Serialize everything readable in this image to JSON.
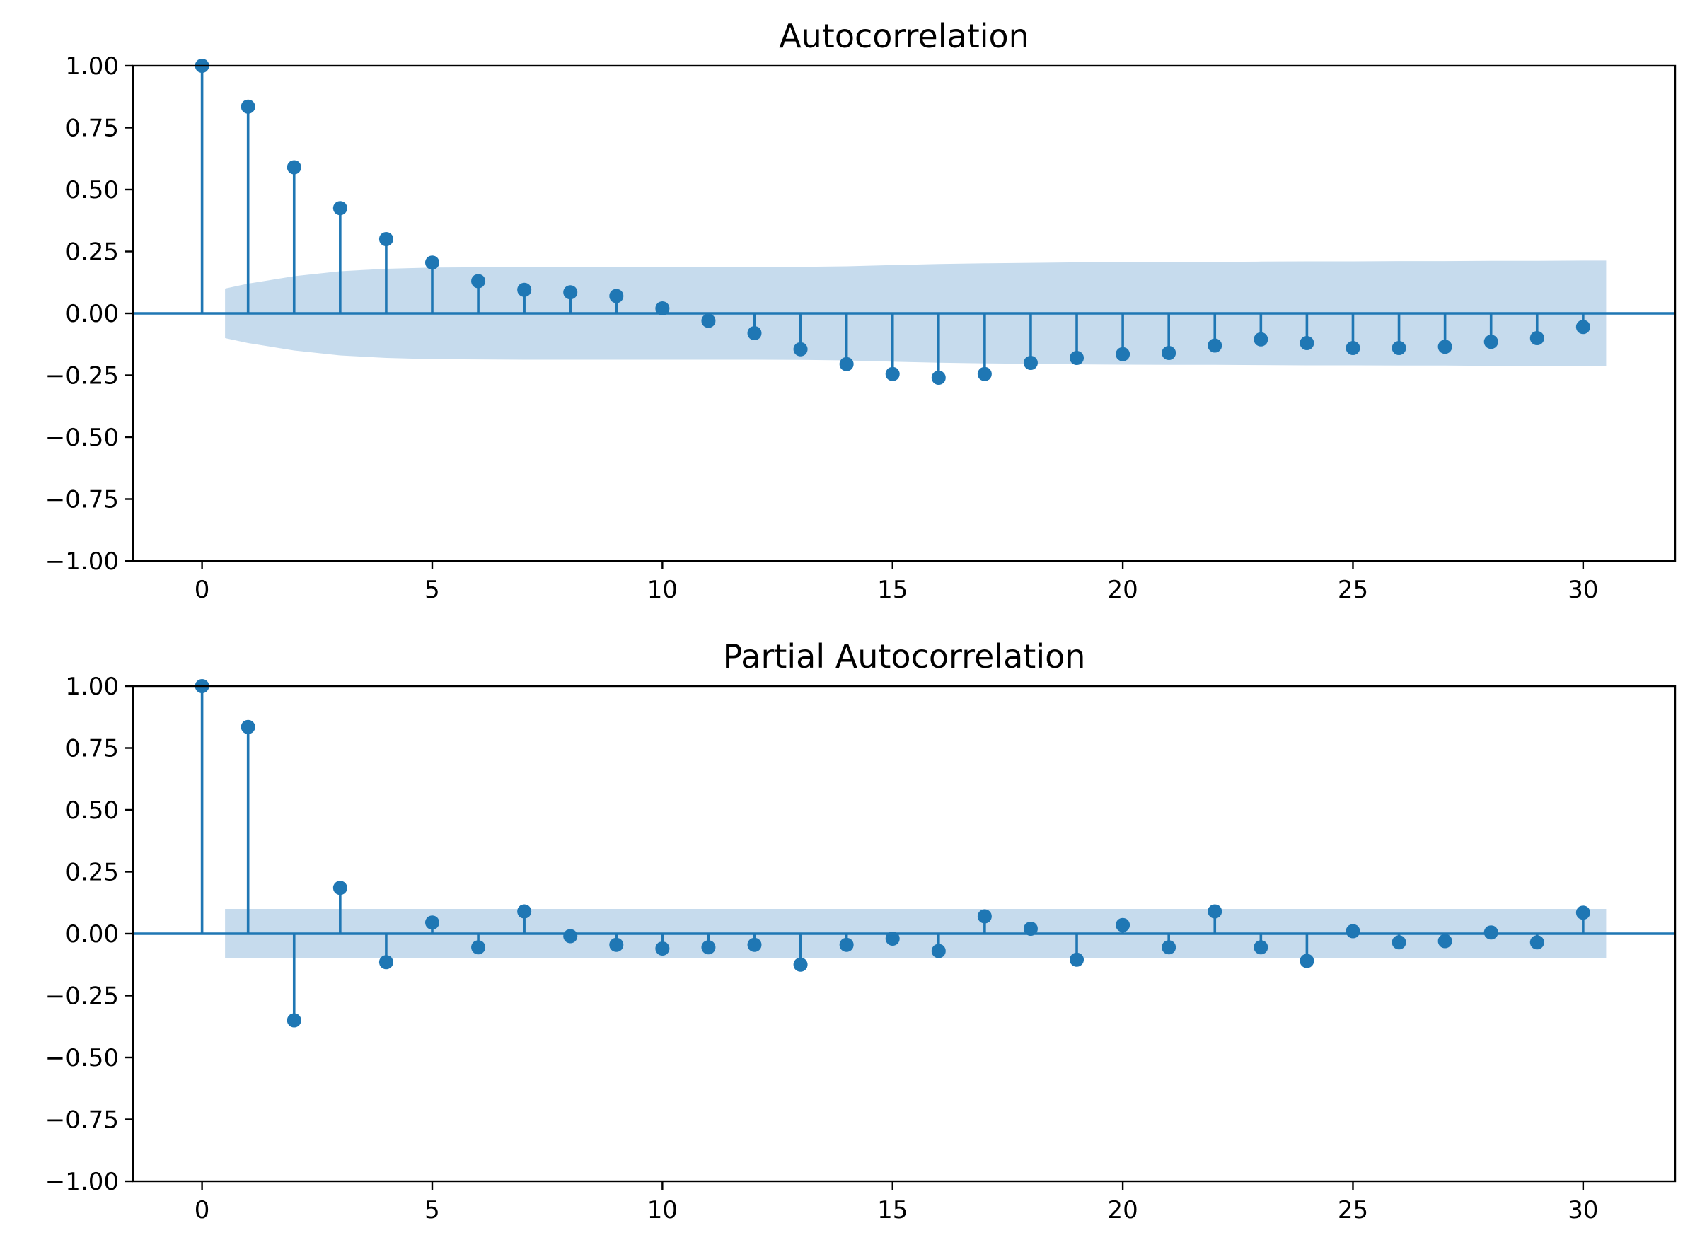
{
  "chart_data": [
    {
      "type": "stem",
      "title": "Autocorrelation",
      "xlabel": "",
      "ylabel": "",
      "xlim": [
        -1.5,
        32
      ],
      "ylim": [
        -1.0,
        1.0
      ],
      "xticks": [
        0,
        5,
        10,
        15,
        20,
        25,
        30
      ],
      "xtick_labels": [
        "0",
        "5",
        "10",
        "15",
        "20",
        "25",
        "30"
      ],
      "yticks": [
        1.0,
        0.75,
        0.5,
        0.25,
        0.0,
        -0.25,
        -0.5,
        -0.75,
        -1.0
      ],
      "ytick_labels": [
        "1.00",
        "0.75",
        "0.50",
        "0.25",
        "0.00",
        "−0.25",
        "−0.50",
        "−0.75",
        "−1.00"
      ],
      "grid": false,
      "color": "#1f77b4",
      "band_color": "#c6dbed",
      "x": [
        0,
        1,
        2,
        3,
        4,
        5,
        6,
        7,
        8,
        9,
        10,
        11,
        12,
        13,
        14,
        15,
        16,
        17,
        18,
        19,
        20,
        21,
        22,
        23,
        24,
        25,
        26,
        27,
        28,
        29,
        30
      ],
      "values": [
        1.0,
        0.835,
        0.59,
        0.425,
        0.3,
        0.205,
        0.13,
        0.095,
        0.085,
        0.07,
        0.02,
        -0.03,
        -0.08,
        -0.145,
        -0.205,
        -0.245,
        -0.26,
        -0.245,
        -0.2,
        -0.18,
        -0.165,
        -0.16,
        -0.13,
        -0.105,
        -0.12,
        -0.14,
        -0.14,
        -0.135,
        -0.115,
        -0.1,
        -0.055
      ],
      "confidence_band": {
        "x": [
          0.5,
          1,
          2,
          3,
          4,
          5,
          6,
          7,
          8,
          9,
          10,
          11,
          12,
          13,
          14,
          15,
          16,
          17,
          18,
          19,
          20,
          21,
          22,
          23,
          24,
          25,
          26,
          27,
          28,
          29,
          30,
          30.5
        ],
        "upper": [
          0.1,
          0.12,
          0.15,
          0.17,
          0.18,
          0.185,
          0.186,
          0.187,
          0.187,
          0.187,
          0.187,
          0.187,
          0.187,
          0.188,
          0.19,
          0.195,
          0.199,
          0.202,
          0.204,
          0.206,
          0.207,
          0.208,
          0.208,
          0.209,
          0.21,
          0.21,
          0.211,
          0.211,
          0.212,
          0.212,
          0.213,
          0.213
        ]
      }
    },
    {
      "type": "stem",
      "title": "Partial Autocorrelation",
      "xlabel": "",
      "ylabel": "",
      "xlim": [
        -1.5,
        32
      ],
      "ylim": [
        -1.0,
        1.0
      ],
      "xticks": [
        0,
        5,
        10,
        15,
        20,
        25,
        30
      ],
      "xtick_labels": [
        "0",
        "5",
        "10",
        "15",
        "20",
        "25",
        "30"
      ],
      "yticks": [
        1.0,
        0.75,
        0.5,
        0.25,
        0.0,
        -0.25,
        -0.5,
        -0.75,
        -1.0
      ],
      "ytick_labels": [
        "1.00",
        "0.75",
        "0.50",
        "0.25",
        "0.00",
        "−0.25",
        "−0.50",
        "−0.75",
        "−1.00"
      ],
      "grid": false,
      "color": "#1f77b4",
      "band_color": "#c6dbed",
      "x": [
        0,
        1,
        2,
        3,
        4,
        5,
        6,
        7,
        8,
        9,
        10,
        11,
        12,
        13,
        14,
        15,
        16,
        17,
        18,
        19,
        20,
        21,
        22,
        23,
        24,
        25,
        26,
        27,
        28,
        29,
        30
      ],
      "values": [
        1.0,
        0.835,
        -0.35,
        0.185,
        -0.115,
        0.045,
        -0.055,
        0.09,
        -0.01,
        -0.045,
        -0.06,
        -0.055,
        -0.045,
        -0.125,
        -0.045,
        -0.02,
        -0.07,
        0.07,
        0.02,
        -0.105,
        0.035,
        -0.055,
        0.09,
        -0.055,
        -0.11,
        0.01,
        -0.035,
        -0.03,
        0.005,
        -0.035,
        0.085
      ],
      "confidence_band": {
        "x": [
          0.5,
          30.5
        ],
        "upper": [
          0.1,
          0.1
        ]
      }
    }
  ]
}
